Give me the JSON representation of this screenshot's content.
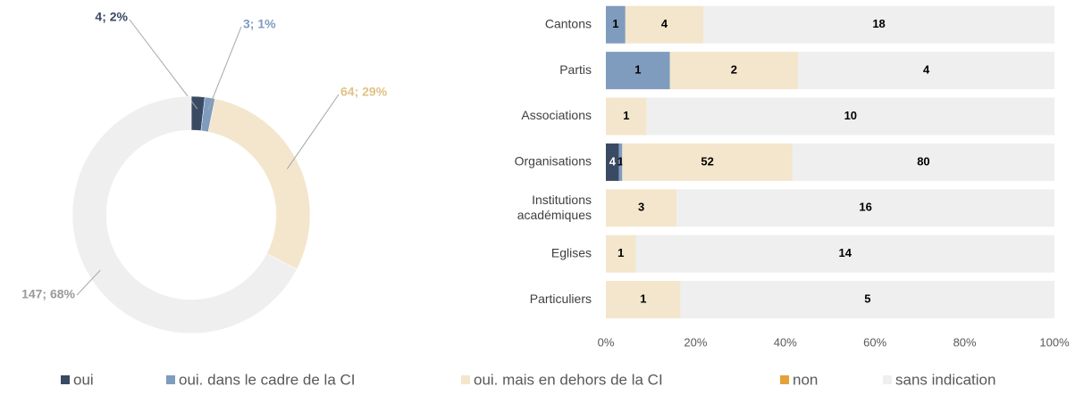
{
  "chart_data": [
    {
      "type": "donut",
      "values": [
        4,
        3,
        64,
        0,
        147
      ],
      "value_labels": [
        "4; 2%",
        "3; 1%",
        "64; 29%",
        null,
        "147; 68%"
      ],
      "colors": [
        "#3b4a63",
        "#7f9cbf",
        "#f3e6cc",
        "#e3a33a",
        "#efefef"
      ],
      "label_colors": [
        "#3b4a63",
        "#7f9cbf",
        "#e0c285",
        "#e3a33a",
        "#9a9a9a"
      ]
    },
    {
      "type": "stacked_bar_100",
      "orientation": "horizontal",
      "categories": [
        "Cantons",
        "Partis",
        "Associations",
        "Organisations",
        "Institutions académiques",
        "Eglises",
        "Particuliers"
      ],
      "series": [
        {
          "name": "oui",
          "color": "#3b4a63",
          "values": [
            null,
            null,
            null,
            4,
            null,
            null,
            null
          ]
        },
        {
          "name": "oui. dans le cadre de la CI",
          "color": "#7f9cbf",
          "values": [
            1,
            1,
            null,
            1,
            null,
            null,
            null
          ]
        },
        {
          "name": "oui. mais en dehors de la CI",
          "color": "#f3e6cc",
          "values": [
            4,
            2,
            1,
            52,
            3,
            1,
            1
          ]
        },
        {
          "name": "non",
          "color": "#e3a33a",
          "values": [
            null,
            null,
            null,
            null,
            null,
            null,
            null
          ]
        },
        {
          "name": "sans indication",
          "color": "#efefef",
          "values": [
            18,
            4,
            10,
            80,
            16,
            14,
            5
          ]
        }
      ],
      "xlim": [
        0,
        100
      ],
      "xticks": [
        {
          "value": 0,
          "label": "0%"
        },
        {
          "value": 20,
          "label": "20%"
        },
        {
          "value": 40,
          "label": "40%"
        },
        {
          "value": 60,
          "label": "60%"
        },
        {
          "value": 80,
          "label": "80%"
        },
        {
          "value": 100,
          "label": "100%"
        }
      ],
      "legend": "bottom"
    }
  ]
}
